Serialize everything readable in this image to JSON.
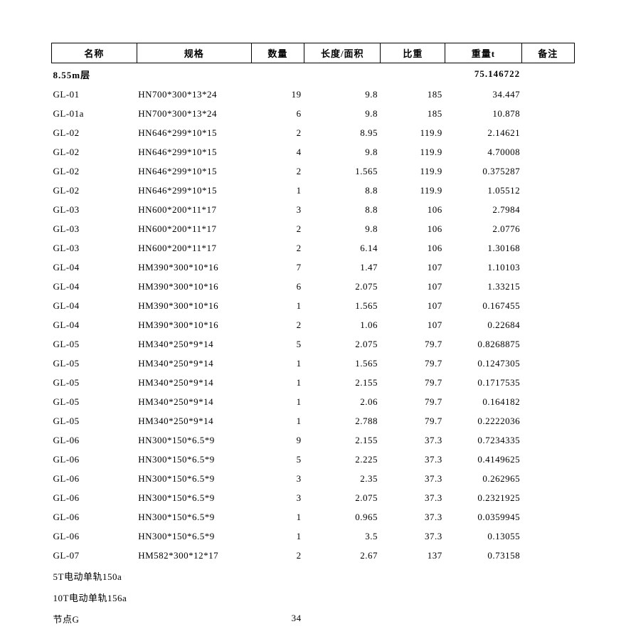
{
  "columns": [
    {
      "key": "name",
      "label": "名称"
    },
    {
      "key": "spec",
      "label": "规格"
    },
    {
      "key": "qty",
      "label": "数量"
    },
    {
      "key": "area",
      "label": "长度/面积"
    },
    {
      "key": "ratio",
      "label": "比重"
    },
    {
      "key": "weight",
      "label": "重量t"
    },
    {
      "key": "note",
      "label": "备注"
    }
  ],
  "section": {
    "label": "8.55m层",
    "total": "75.146722"
  },
  "rows": [
    {
      "name": "GL-01",
      "spec": "HN700*300*13*24",
      "qty": "19",
      "area": "9.8",
      "ratio": "185",
      "weight": "34.447"
    },
    {
      "name": "GL-01a",
      "spec": "HN700*300*13*24",
      "qty": "6",
      "area": "9.8",
      "ratio": "185",
      "weight": "10.878"
    },
    {
      "name": "GL-02",
      "spec": "HN646*299*10*15",
      "qty": "2",
      "area": "8.95",
      "ratio": "119.9",
      "weight": "2.14621"
    },
    {
      "name": "GL-02",
      "spec": "HN646*299*10*15",
      "qty": "4",
      "area": "9.8",
      "ratio": "119.9",
      "weight": "4.70008"
    },
    {
      "name": "GL-02",
      "spec": "HN646*299*10*15",
      "qty": "2",
      "area": "1.565",
      "ratio": "119.9",
      "weight": "0.375287"
    },
    {
      "name": "GL-02",
      "spec": "HN646*299*10*15",
      "qty": "1",
      "area": "8.8",
      "ratio": "119.9",
      "weight": "1.05512"
    },
    {
      "name": "GL-03",
      "spec": "HN600*200*11*17",
      "qty": "3",
      "area": "8.8",
      "ratio": "106",
      "weight": "2.7984"
    },
    {
      "name": "GL-03",
      "spec": "HN600*200*11*17",
      "qty": "2",
      "area": "9.8",
      "ratio": "106",
      "weight": "2.0776"
    },
    {
      "name": "GL-03",
      "spec": "HN600*200*11*17",
      "qty": "2",
      "area": "6.14",
      "ratio": "106",
      "weight": "1.30168"
    },
    {
      "name": "GL-04",
      "spec": "HM390*300*10*16",
      "qty": "7",
      "area": "1.47",
      "ratio": "107",
      "weight": "1.10103"
    },
    {
      "name": "GL-04",
      "spec": "HM390*300*10*16",
      "qty": "6",
      "area": "2.075",
      "ratio": "107",
      "weight": "1.33215"
    },
    {
      "name": "GL-04",
      "spec": "HM390*300*10*16",
      "qty": "1",
      "area": "1.565",
      "ratio": "107",
      "weight": "0.167455"
    },
    {
      "name": "GL-04",
      "spec": "HM390*300*10*16",
      "qty": "2",
      "area": "1.06",
      "ratio": "107",
      "weight": "0.22684"
    },
    {
      "name": "GL-05",
      "spec": "HM340*250*9*14",
      "qty": "5",
      "area": "2.075",
      "ratio": "79.7",
      "weight": "0.8268875"
    },
    {
      "name": "GL-05",
      "spec": "HM340*250*9*14",
      "qty": "1",
      "area": "1.565",
      "ratio": "79.7",
      "weight": "0.1247305"
    },
    {
      "name": "GL-05",
      "spec": "HM340*250*9*14",
      "qty": "1",
      "area": "2.155",
      "ratio": "79.7",
      "weight": "0.1717535"
    },
    {
      "name": "GL-05",
      "spec": "HM340*250*9*14",
      "qty": "1",
      "area": "2.06",
      "ratio": "79.7",
      "weight": "0.164182"
    },
    {
      "name": "GL-05",
      "spec": "HM340*250*9*14",
      "qty": "1",
      "area": "2.788",
      "ratio": "79.7",
      "weight": "0.2222036"
    },
    {
      "name": "GL-06",
      "spec": "HN300*150*6.5*9",
      "qty": "9",
      "area": "2.155",
      "ratio": "37.3",
      "weight": "0.7234335"
    },
    {
      "name": "GL-06",
      "spec": "HN300*150*6.5*9",
      "qty": "5",
      "area": "2.225",
      "ratio": "37.3",
      "weight": "0.4149625"
    },
    {
      "name": "GL-06",
      "spec": "HN300*150*6.5*9",
      "qty": "3",
      "area": "2.35",
      "ratio": "37.3",
      "weight": "0.262965"
    },
    {
      "name": "GL-06",
      "spec": "HN300*150*6.5*9",
      "qty": "3",
      "area": "2.075",
      "ratio": "37.3",
      "weight": "0.2321925"
    },
    {
      "name": "GL-06",
      "spec": "HN300*150*6.5*9",
      "qty": "1",
      "area": "0.965",
      "ratio": "37.3",
      "weight": "0.0359945"
    },
    {
      "name": "GL-06",
      "spec": "HN300*150*6.5*9",
      "qty": "1",
      "area": "3.5",
      "ratio": "37.3",
      "weight": "0.13055"
    },
    {
      "name": "GL-07",
      "spec": "HM582*300*12*17",
      "qty": "2",
      "area": "2.67",
      "ratio": "137",
      "weight": "0.73158"
    },
    {
      "name": "5T电动单轨150a",
      "spec": "",
      "qty": "",
      "area": "",
      "ratio": "",
      "weight": ""
    },
    {
      "name": "10T电动单轨156a",
      "spec": "",
      "qty": "",
      "area": "",
      "ratio": "",
      "weight": ""
    },
    {
      "name": "节点G",
      "spec": "",
      "qty": "34",
      "area": "",
      "ratio": "",
      "weight": ""
    }
  ]
}
